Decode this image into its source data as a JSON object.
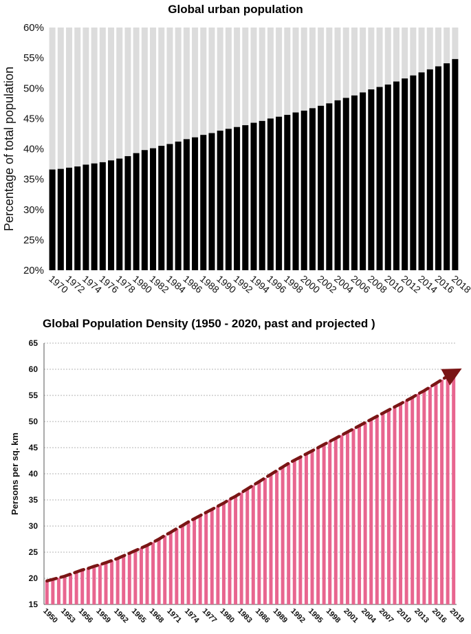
{
  "chart_data": [
    {
      "type": "bar",
      "title": "Global urban population",
      "xlabel": "",
      "ylabel": "Percentage of total population",
      "ylim": [
        20,
        60
      ],
      "yticks": [
        "20%",
        "25%",
        "30%",
        "35%",
        "40%",
        "45%",
        "50%",
        "55%",
        "60%"
      ],
      "categories": [
        1970,
        1971,
        1972,
        1973,
        1974,
        1975,
        1976,
        1977,
        1978,
        1979,
        1980,
        1981,
        1982,
        1983,
        1984,
        1985,
        1986,
        1987,
        1988,
        1989,
        1990,
        1991,
        1992,
        1993,
        1994,
        1995,
        1996,
        1997,
        1998,
        1999,
        2000,
        2001,
        2002,
        2003,
        2004,
        2005,
        2006,
        2007,
        2008,
        2009,
        2010,
        2011,
        2012,
        2013,
        2014,
        2015,
        2016,
        2017,
        2018
      ],
      "tick_labels": [
        "1970",
        "1972",
        "1974",
        "1976",
        "1978",
        "1980",
        "1982",
        "1984",
        "1986",
        "1988",
        "1990",
        "1992",
        "1994",
        "1996",
        "1998",
        "2000",
        "2002",
        "2004",
        "2006",
        "2008",
        "2010",
        "2012",
        "2014",
        "2016",
        "2018"
      ],
      "values": [
        36.6,
        36.7,
        36.9,
        37.1,
        37.4,
        37.6,
        37.8,
        38.1,
        38.4,
        38.8,
        39.3,
        39.8,
        40.1,
        40.5,
        40.8,
        41.2,
        41.6,
        41.9,
        42.3,
        42.6,
        43.0,
        43.3,
        43.6,
        43.9,
        44.3,
        44.6,
        45.0,
        45.3,
        45.6,
        46.0,
        46.3,
        46.7,
        47.1,
        47.5,
        48.0,
        48.4,
        48.8,
        49.3,
        49.8,
        50.2,
        50.6,
        51.1,
        51.6,
        52.1,
        52.6,
        53.1,
        53.6,
        54.1,
        54.8
      ],
      "series": [
        {
          "name": "Urban",
          "color": "#000000"
        },
        {
          "name": "Total (remainder)",
          "color": "#dcdcdc"
        }
      ]
    },
    {
      "type": "bar",
      "title": "Global Population Density (1950 - 2020, past and projected )",
      "xlabel": "",
      "ylabel": "Persons per sq. km",
      "ylim": [
        15,
        65
      ],
      "yticks": [
        "15",
        "20",
        "25",
        "30",
        "35",
        "40",
        "45",
        "50",
        "55",
        "60",
        "65"
      ],
      "categories": [
        1950,
        1951,
        1952,
        1953,
        1954,
        1955,
        1956,
        1957,
        1958,
        1959,
        1960,
        1961,
        1962,
        1963,
        1964,
        1965,
        1966,
        1967,
        1968,
        1969,
        1970,
        1971,
        1972,
        1973,
        1974,
        1975,
        1976,
        1977,
        1978,
        1979,
        1980,
        1981,
        1982,
        1983,
        1984,
        1985,
        1986,
        1987,
        1988,
        1989,
        1990,
        1991,
        1992,
        1993,
        1994,
        1995,
        1996,
        1997,
        1998,
        1999,
        2000,
        2001,
        2002,
        2003,
        2004,
        2005,
        2006,
        2007,
        2008,
        2009,
        2010,
        2011,
        2012,
        2013,
        2014,
        2015,
        2016,
        2017,
        2018,
        2019
      ],
      "tick_labels": [
        "1950",
        "1953",
        "1956",
        "1959",
        "1962",
        "1965",
        "1968",
        "1971",
        "1974",
        "1977",
        "1980",
        "1983",
        "1986",
        "1989",
        "1992",
        "1995",
        "1998",
        "2001",
        "2004",
        "2007",
        "2010",
        "2013",
        "2016",
        "2019"
      ],
      "values": [
        19.5,
        19.8,
        20.1,
        20.4,
        20.8,
        21.2,
        21.6,
        21.9,
        22.3,
        22.6,
        23.0,
        23.4,
        23.8,
        24.3,
        24.8,
        25.3,
        25.8,
        26.3,
        26.9,
        27.5,
        28.2,
        28.8,
        29.5,
        30.1,
        30.8,
        31.4,
        32.0,
        32.6,
        33.2,
        33.8,
        34.4,
        35.1,
        35.7,
        36.4,
        37.1,
        37.8,
        38.5,
        39.2,
        39.9,
        40.6,
        41.3,
        42.0,
        42.6,
        43.2,
        43.8,
        44.4,
        45.0,
        45.6,
        46.2,
        46.8,
        47.4,
        48.0,
        48.6,
        49.2,
        49.8,
        50.4,
        51.0,
        51.6,
        52.2,
        52.8,
        53.4,
        54.0,
        54.6,
        55.3,
        55.9,
        56.6,
        57.3,
        58.0,
        58.7,
        59.3
      ],
      "series": [
        {
          "name": "Density",
          "color": "#e8658f"
        },
        {
          "name": "Trend",
          "color": "#7a1515"
        }
      ]
    }
  ]
}
